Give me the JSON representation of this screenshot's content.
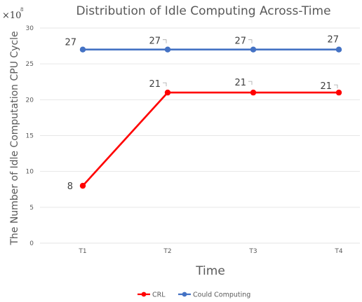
{
  "chart_data": {
    "type": "line",
    "title": "Distribution of Idle Computing Across-Time",
    "xlabel": "Time",
    "ylabel": "The Number of Idle Computation CPU Cycle",
    "y_multiplier": {
      "base": "×10",
      "exponent": "8"
    },
    "categories": [
      "T1",
      "T2",
      "T3",
      "T4"
    ],
    "ylim": [
      0,
      30
    ],
    "yticks": [
      0,
      5,
      10,
      15,
      20,
      25,
      30
    ],
    "grid": true,
    "legend_position": "bottom",
    "series": [
      {
        "name": "CRL",
        "color": "#ff0000",
        "values": [
          8,
          21,
          21,
          21
        ]
      },
      {
        "name": "Could Computing",
        "color": "#4472c4",
        "values": [
          27,
          27,
          27,
          27
        ]
      }
    ]
  }
}
